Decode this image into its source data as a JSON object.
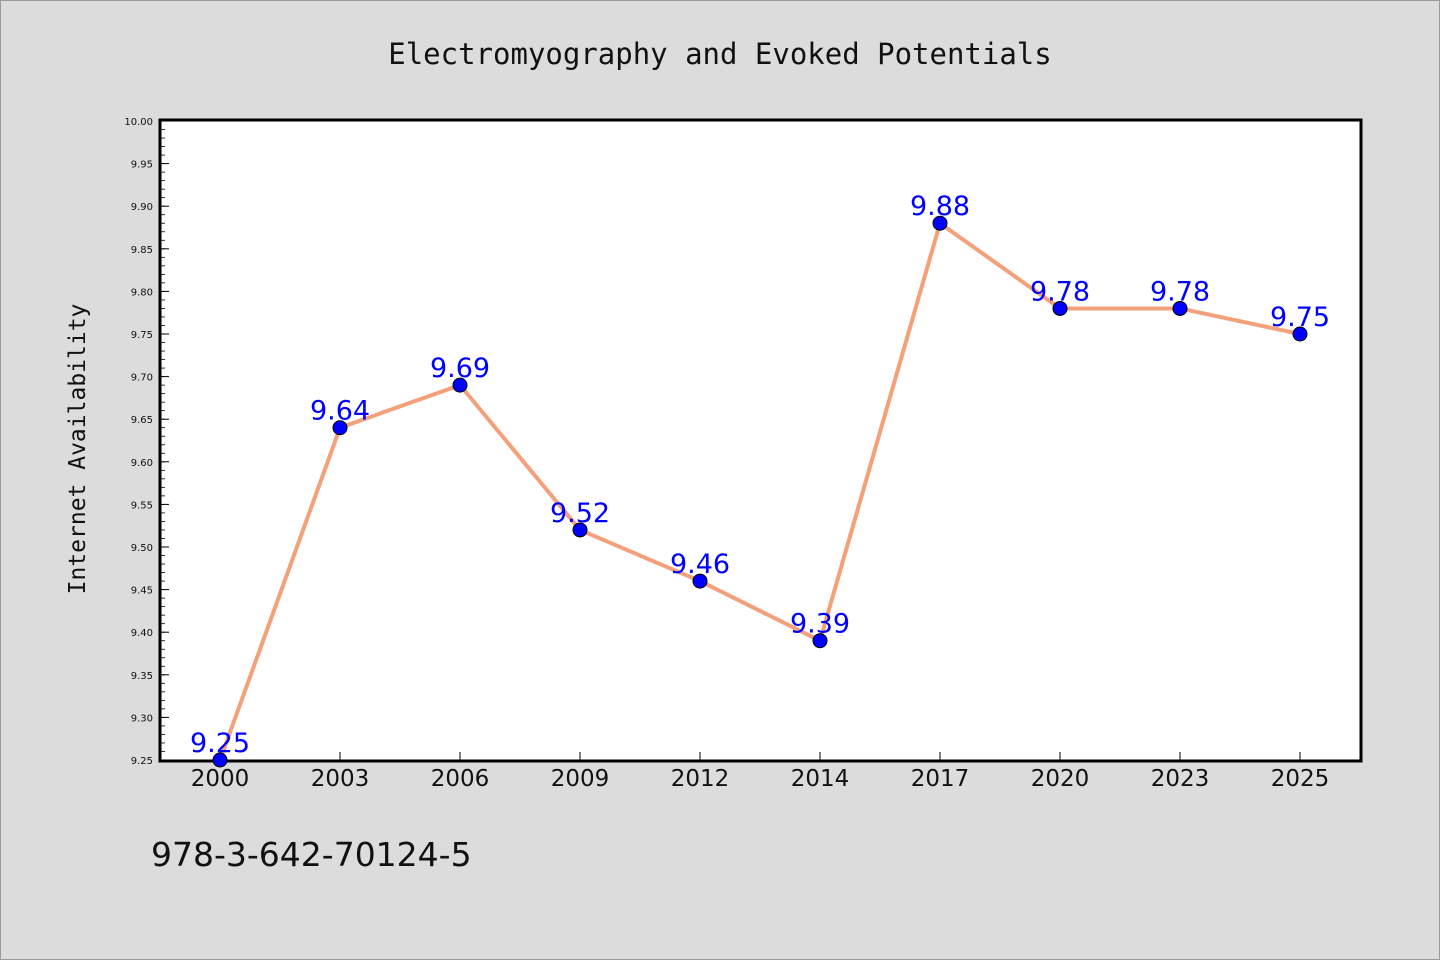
{
  "chart_data": {
    "type": "line",
    "title": "Electromyography and Evoked Potentials",
    "xlabel": "",
    "ylabel": "Internet Availability",
    "categories": [
      "2000",
      "2003",
      "2006",
      "2009",
      "2012",
      "2014",
      "2017",
      "2020",
      "2023",
      "2025"
    ],
    "series": [
      {
        "values": [
          9.25,
          9.64,
          9.69,
          9.52,
          9.46,
          9.39,
          9.88,
          9.78,
          9.78,
          9.75
        ]
      }
    ],
    "data_labels": [
      "9.25",
      "9.64",
      "9.69",
      "9.52",
      "9.46",
      "9.39",
      "9.88",
      "9.78",
      "9.78",
      "9.75"
    ],
    "ylim": [
      9.25,
      10.0
    ],
    "yticks": [
      "9.25",
      "9.30",
      "9.35",
      "9.40",
      "9.45",
      "9.50",
      "9.55",
      "9.60",
      "9.65",
      "9.70",
      "9.75",
      "9.80",
      "9.85",
      "9.90",
      "9.95",
      "10.00"
    ],
    "grid": false,
    "legend": "none",
    "colors": {
      "line": "#f4a07a",
      "marker": "#0000ff",
      "labels": "#0000ff",
      "background": "#dcdcdc",
      "plot_area": "#ffffff"
    }
  },
  "footer_text": "978-3-642-70124-5"
}
